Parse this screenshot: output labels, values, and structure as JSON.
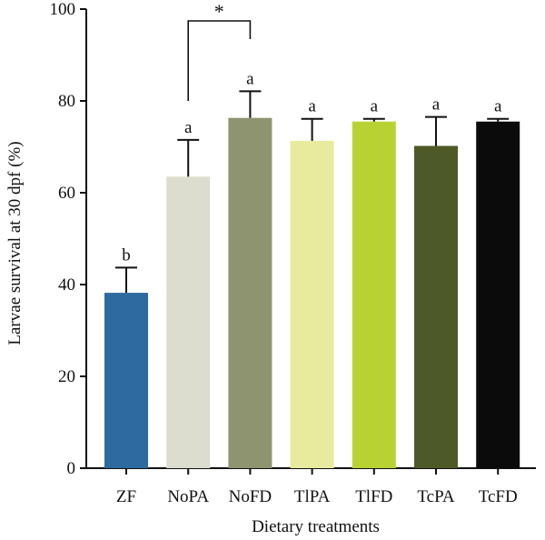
{
  "chart_data": {
    "type": "bar",
    "xlabel": "Dietary treatments",
    "ylabel": "Larvae survival at 30 dpf (%)",
    "ylim": [
      0,
      100
    ],
    "yticks": [
      0,
      20,
      40,
      60,
      80,
      100
    ],
    "categories": [
      "ZF",
      "NoPA",
      "NoFD",
      "TlPA",
      "TlFD",
      "TcPA",
      "TcFD"
    ],
    "values": [
      38.2,
      63.5,
      76.3,
      71.3,
      75.5,
      70.2,
      75.5
    ],
    "errors": [
      5.5,
      8.0,
      5.8,
      4.8,
      0.6,
      6.3,
      0.6
    ],
    "significance_letters": [
      "b",
      "a",
      "a",
      "a",
      "a",
      "a",
      "a"
    ],
    "colors": [
      "#2e6aa0",
      "#dcdccf",
      "#8f9470",
      "#e8ea9e",
      "#b8d233",
      "#4d5a28",
      "#0b0b0b"
    ],
    "comparison": {
      "from": "NoPA",
      "to": "NoFD",
      "label": "*"
    },
    "grid": false,
    "legend": "none"
  }
}
